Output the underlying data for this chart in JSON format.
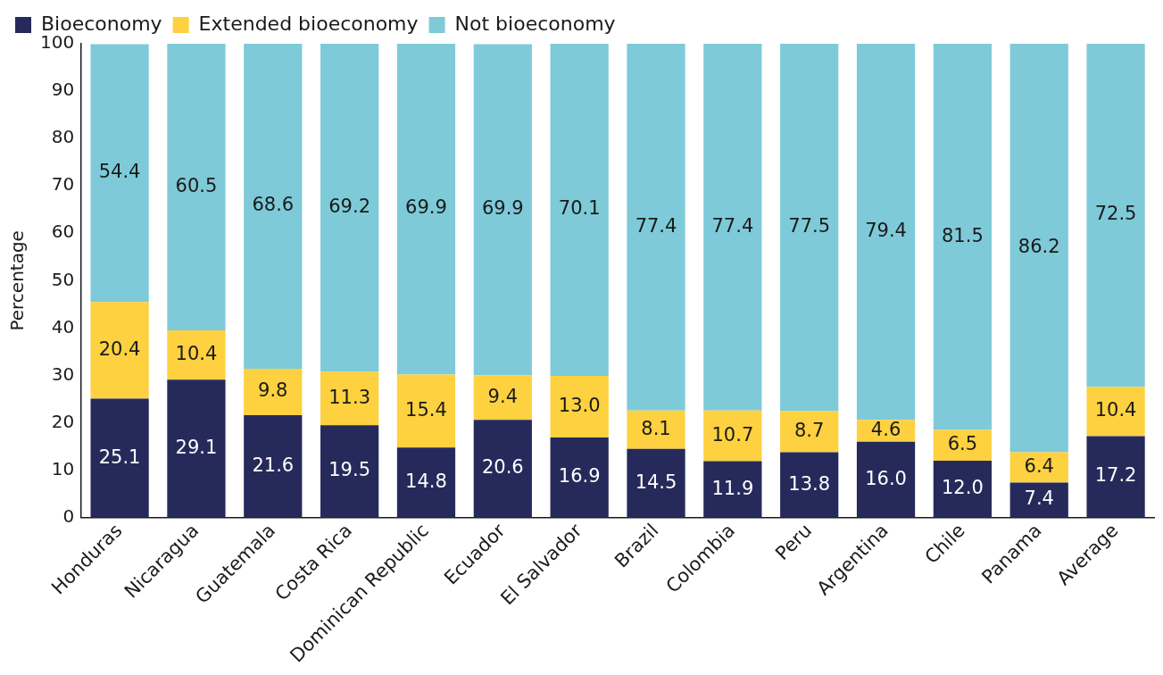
{
  "chart_data": {
    "type": "bar",
    "stacked": true,
    "ylabel": "Percentage",
    "categories": [
      "Honduras",
      "Nicaragua",
      "Guatemala",
      "Costa Rica",
      "Dominican Republic",
      "Ecuador",
      "El Salvador",
      "Brazil",
      "Colombia",
      "Peru",
      "Argentina",
      "Chile",
      "Panama",
      "Average"
    ],
    "series": [
      {
        "name": "Bioeconomy",
        "color": "#262a5b",
        "values": [
          25.1,
          29.1,
          21.6,
          19.5,
          14.8,
          20.6,
          16.9,
          14.5,
          11.9,
          13.8,
          16.0,
          12.0,
          7.4,
          17.2
        ],
        "value_labels": [
          "25.1",
          "29.1",
          "21.6",
          "19.5",
          "14.8",
          "20.6",
          "16.9",
          "14.5",
          "11.9",
          "13.8",
          "16.0",
          "12.0",
          "7.4",
          "17.2"
        ]
      },
      {
        "name": "Extended bioeconomy",
        "color": "#fdd13f",
        "values": [
          20.4,
          10.4,
          9.8,
          11.3,
          15.4,
          9.4,
          13.0,
          8.1,
          10.7,
          8.7,
          4.6,
          6.5,
          6.4,
          10.4
        ],
        "value_labels": [
          "20.4",
          "10.4",
          "9.8",
          "11.3",
          "15.4",
          "9.4",
          "13.0",
          "8.1",
          "10.7",
          "8.7",
          "4.6",
          "6.5",
          "6.4",
          "10.4"
        ]
      },
      {
        "name": "Not bioeconomy",
        "color": "#7ecad8",
        "values": [
          54.4,
          60.5,
          68.6,
          69.2,
          69.9,
          69.9,
          70.1,
          77.4,
          77.4,
          77.5,
          79.4,
          81.5,
          86.2,
          72.5
        ],
        "value_labels": [
          "54.4",
          "60.5",
          "68.6",
          "69.2",
          "69.9",
          "69.9",
          "70.1",
          "77.4",
          "77.4",
          "77.5",
          "79.4",
          "81.5",
          "86.2",
          "72.5"
        ]
      }
    ],
    "ylim": [
      0,
      100
    ],
    "yticks": [
      0,
      10,
      20,
      30,
      40,
      50,
      60,
      70,
      80,
      90,
      100
    ],
    "grid": false,
    "legend": "top left"
  }
}
